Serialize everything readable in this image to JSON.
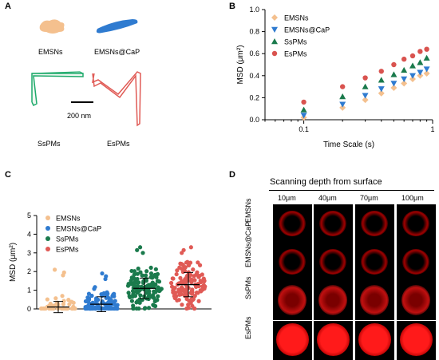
{
  "panelA": {
    "letter": "A",
    "labels": {
      "emsns": "EMSNs",
      "emsns_cap": "EMSNs@CaP",
      "sspms": "SsPMs",
      "espms": "EsPMs",
      "scalebar": "200 nm"
    },
    "colors": {
      "emsns": "#f4c08e",
      "emsns_cap": "#2f7bd0",
      "sspms": "#1eaa6b",
      "espms": "#e05a55"
    }
  },
  "panelB": {
    "letter": "B",
    "chart_data": {
      "type": "scatter",
      "xlabel": "Time Scale (s)",
      "ylabel": "MSD (μm²)",
      "xscale": "log",
      "xlim": [
        0.05,
        1
      ],
      "ylim": [
        0,
        1.0
      ],
      "yticks": [
        "0.0",
        "0.2",
        "0.4",
        "0.6",
        "0.8",
        "1.0"
      ],
      "xticks": [
        "0.1",
        "1"
      ],
      "x": [
        0.1,
        0.2,
        0.3,
        0.4,
        0.5,
        0.6,
        0.7,
        0.8,
        0.9
      ],
      "series": [
        {
          "name": "EMSNs",
          "marker": "diamond",
          "color": "#f4c08e",
          "values": [
            0.02,
            0.11,
            0.18,
            0.24,
            0.29,
            0.33,
            0.37,
            0.4,
            0.42
          ]
        },
        {
          "name": "EMSNs@CaP",
          "marker": "tri-down",
          "color": "#2f7bd0",
          "values": [
            0.04,
            0.14,
            0.22,
            0.28,
            0.33,
            0.37,
            0.4,
            0.43,
            0.46
          ]
        },
        {
          "name": "SsPMs",
          "marker": "tri-up",
          "color": "#1a7a4c",
          "values": [
            0.09,
            0.21,
            0.3,
            0.36,
            0.41,
            0.45,
            0.49,
            0.52,
            0.56
          ]
        },
        {
          "name": "EsPMs",
          "marker": "circle",
          "color": "#d9534f",
          "values": [
            0.16,
            0.3,
            0.38,
            0.44,
            0.5,
            0.55,
            0.58,
            0.62,
            0.64
          ]
        }
      ],
      "legend": "top-left"
    }
  },
  "panelC": {
    "letter": "C",
    "chart_data": {
      "type": "scatter",
      "ylabel": "MSD (μm²)",
      "ylim": [
        0,
        5
      ],
      "yticks": [
        "0",
        "1",
        "2",
        "3",
        "4",
        "5"
      ],
      "categories": [
        "EMSNs",
        "EMSNs@CaP",
        "SsPMs",
        "EsPMs"
      ],
      "series": [
        {
          "name": "EMSNs",
          "color": "#f4c08e",
          "mean": 0.1,
          "sd": 0.3,
          "max": 2.1,
          "n": 45
        },
        {
          "name": "EMSNs@CaP",
          "color": "#2f7bd0",
          "mean": 0.25,
          "sd": 0.4,
          "max": 1.9,
          "n": 110
        },
        {
          "name": "SsPMs",
          "color": "#1a7a4c",
          "mean": 1.1,
          "sd": 0.55,
          "max": 3.3,
          "n": 130
        },
        {
          "name": "EsPMs",
          "color": "#e05a55",
          "mean": 1.3,
          "sd": 0.65,
          "max": 3.3,
          "n": 130
        }
      ],
      "legend": "top-left"
    }
  },
  "panelD": {
    "letter": "D",
    "title": "Scanning depth from surface",
    "depths": [
      "10μm",
      "40μm",
      "70μm",
      "100μm"
    ],
    "rows": [
      "EMSNs",
      "EMSNs@CaP",
      "SsPMs",
      "EsPMs"
    ],
    "signal_color": "#ff1a1a"
  }
}
